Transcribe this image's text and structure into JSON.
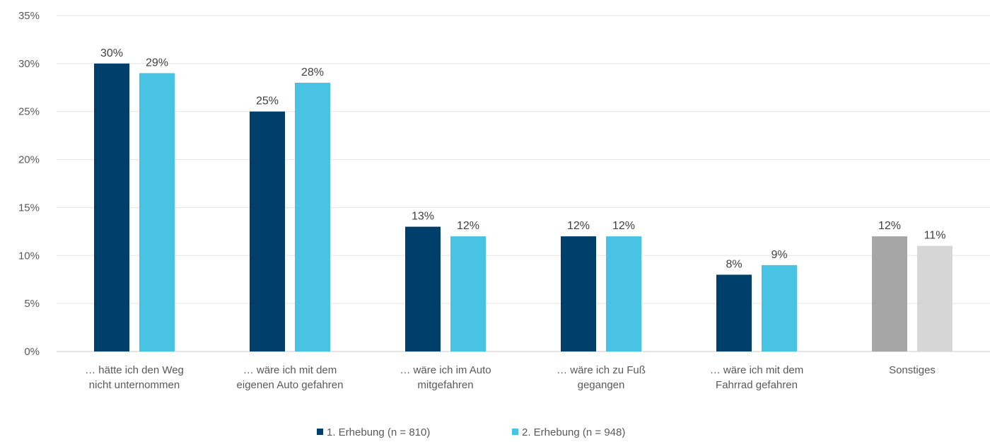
{
  "chart_data": {
    "type": "bar",
    "categories": [
      [
        "… hätte ich den Weg",
        "nicht unternommen"
      ],
      [
        "… wäre ich mit dem",
        "eigenen Auto gefahren"
      ],
      [
        "… wäre ich im Auto",
        "mitgefahren"
      ],
      [
        "… wäre ich zu Fuß",
        "gegangen"
      ],
      [
        "… wäre ich mit dem",
        "Fahrrad gefahren"
      ],
      [
        "Sonstiges"
      ]
    ],
    "series": [
      {
        "name": "1. Erhebung (n = 810)",
        "color": "#003f6b",
        "values": [
          30,
          25,
          13,
          12,
          8,
          12
        ],
        "labels": [
          "30%",
          "25%",
          "13%",
          "12%",
          "8%",
          "12%"
        ]
      },
      {
        "name": "2. Erhebung (n = 948)",
        "color": "#48c3e4",
        "values": [
          29,
          28,
          12,
          12,
          9,
          11
        ],
        "labels": [
          "29%",
          "28%",
          "12%",
          "12%",
          "9%",
          "11%"
        ]
      }
    ],
    "point_colors": {
      "5": [
        "#a6a6a6",
        "#d6d6d6"
      ]
    },
    "ylim": [
      0,
      35
    ],
    "yticks": [
      "0%",
      "5%",
      "10%",
      "15%",
      "20%",
      "25%",
      "30%",
      "35%"
    ],
    "ytick_values": [
      0,
      5,
      10,
      15,
      20,
      25,
      30,
      35
    ],
    "grid": true,
    "legend_position": "bottom"
  }
}
